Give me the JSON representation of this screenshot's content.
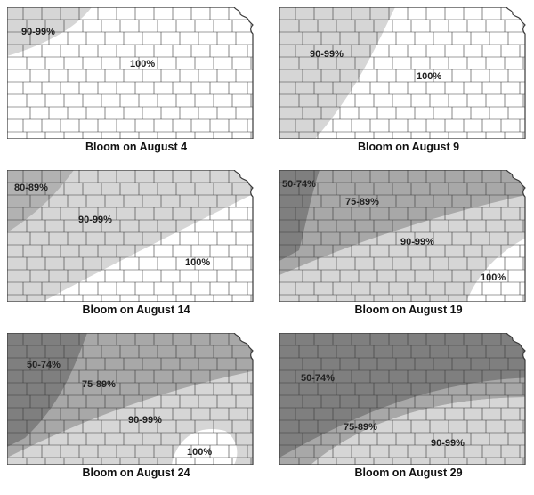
{
  "colors": {
    "c100": "#ffffff",
    "c90_99": "#d6d6d6",
    "c80_89": "#b2b2b2",
    "c75_89": "#a8a8a8",
    "c50_74": "#7f7f7f",
    "county_lines": "#3a3a3a"
  },
  "panels": [
    {
      "caption": "Bloom on August 4",
      "labels": [
        "90-99%",
        "100%"
      ]
    },
    {
      "caption": "Bloom on August 9",
      "labels": [
        "90-99%",
        "100%"
      ]
    },
    {
      "caption": "Bloom on August 14",
      "labels": [
        "80-89%",
        "90-99%",
        "100%"
      ]
    },
    {
      "caption": "Bloom on August 19",
      "labels": [
        "50-74%",
        "75-89%",
        "90-99%",
        "100%"
      ]
    },
    {
      "caption": "Bloom on August 24",
      "labels": [
        "50-74%",
        "75-89%",
        "90-99%",
        "100%"
      ]
    },
    {
      "caption": "Bloom on August 29",
      "labels": [
        "50-74%",
        "75-89%",
        "90-99%"
      ]
    }
  ]
}
